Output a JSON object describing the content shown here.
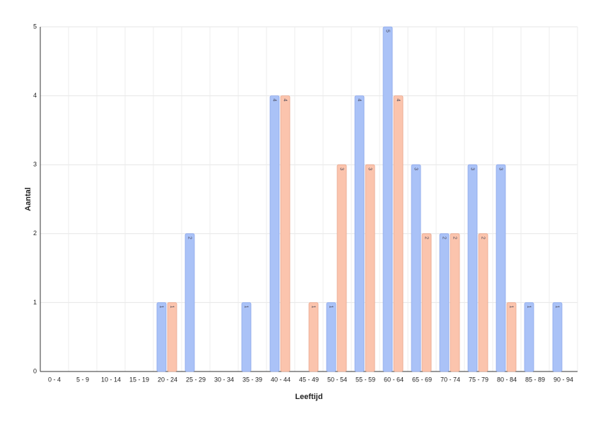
{
  "chart_data": {
    "type": "bar",
    "x_label": "Leeftijd",
    "y_label": "Aantal",
    "categories": [
      "0 - 4",
      "5 - 9",
      "10 - 14",
      "15 - 19",
      "20 - 24",
      "25 - 29",
      "30 - 34",
      "35 - 39",
      "40 - 44",
      "45 - 49",
      "50 - 54",
      "55 - 59",
      "60 - 64",
      "65 - 69",
      "70 - 74",
      "75 - 79",
      "80 - 84",
      "85 - 89",
      "90 - 94"
    ],
    "series": [
      {
        "color": "#aac2f7",
        "values": [
          0,
          0,
          0,
          0,
          1,
          2,
          0,
          1,
          4,
          0,
          1,
          4,
          5,
          3,
          2,
          3,
          3,
          1,
          1
        ]
      },
      {
        "color": "#fbc4ad",
        "values": [
          0,
          0,
          0,
          0,
          1,
          0,
          0,
          0,
          4,
          1,
          3,
          3,
          4,
          2,
          2,
          2,
          1,
          0,
          0
        ]
      }
    ],
    "ylim": [
      0,
      5
    ],
    "yticks": [
      0,
      1,
      2,
      3,
      4,
      5
    ],
    "grid": true
  }
}
